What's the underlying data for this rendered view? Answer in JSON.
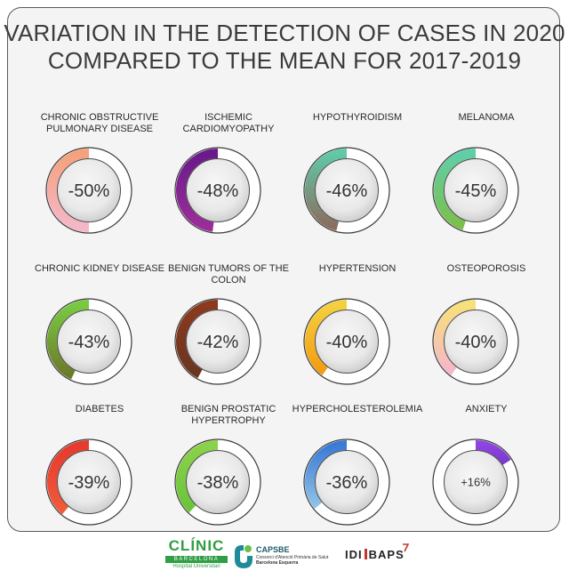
{
  "title": {
    "line1": "VARIATION IN THE DETECTION OF CASES IN 2020",
    "line2": "COMPARED TO THE MEAN FOR 2017-2019"
  },
  "items": [
    {
      "label": "CHRONIC OBSTRUCTIVE PULMONARY DISEASE",
      "value": "-50%",
      "fraction": 0.5,
      "direction": "ccw",
      "colors": [
        "#f6a17c",
        "#f5b7c8"
      ]
    },
    {
      "label": "ISCHEMIC CARDIOMYOPATHY",
      "value": "-48%",
      "fraction": 0.48,
      "direction": "ccw",
      "colors": [
        "#6a1a8a",
        "#9b2d9b"
      ]
    },
    {
      "label": "HYPOTHYROIDISM",
      "value": "-46%",
      "fraction": 0.46,
      "direction": "ccw",
      "colors": [
        "#5fc9a8",
        "#8a6e5e"
      ]
    },
    {
      "label": "MELANOMA",
      "value": "-45%",
      "fraction": 0.45,
      "direction": "ccw",
      "colors": [
        "#5fcfa8",
        "#7cbf4a"
      ]
    },
    {
      "label": "CHRONIC KIDNEY DISEASE",
      "value": "-43%",
      "fraction": 0.43,
      "direction": "ccw",
      "colors": [
        "#7ac943",
        "#6b7a2a"
      ]
    },
    {
      "label": "BENIGN TUMORS OF THE COLON",
      "value": "-42%",
      "fraction": 0.42,
      "direction": "ccw",
      "colors": [
        "#8b3a1e",
        "#6b3520"
      ]
    },
    {
      "label": "HYPERTENSION",
      "value": "-40%",
      "fraction": 0.4,
      "direction": "ccw",
      "colors": [
        "#f4d03f",
        "#f39c12"
      ]
    },
    {
      "label": "OSTEOPOROSIS",
      "value": "-40%",
      "fraction": 0.4,
      "direction": "ccw",
      "colors": [
        "#f7e07a",
        "#f6b7c8"
      ]
    },
    {
      "label": "DIABETES",
      "value": "-39%",
      "fraction": 0.39,
      "direction": "ccw",
      "colors": [
        "#e63a2e",
        "#f05a3a"
      ]
    },
    {
      "label": "BENIGN PROSTATIC HYPERTROPHY",
      "value": "-38%",
      "fraction": 0.38,
      "direction": "ccw",
      "colors": [
        "#8ad24a",
        "#6cc43a"
      ]
    },
    {
      "label": "HYPERCHOLESTEROLEMIA",
      "value": "-36%",
      "fraction": 0.36,
      "direction": "ccw",
      "colors": [
        "#3a7bd5",
        "#8fc1e8"
      ]
    },
    {
      "label": "ANXIETY",
      "value": "+16%",
      "fraction": 0.16,
      "direction": "cw",
      "colors": [
        "#8e44e0",
        "#7b3ad0"
      ]
    }
  ],
  "footer": {
    "clinic": {
      "name": "CLÍNIC",
      "sub1": "BARCELONA",
      "sub2": "Hospital Universitari",
      "color": "#2f9e44"
    },
    "capsbe": {
      "name": "CAPSBE",
      "sub1": "Consorci d'Atenció Primària de Salut",
      "sub2": "Barcelona Esquerra",
      "color": "#1f8a9a"
    },
    "idibaps": {
      "name_left": "IDI",
      "name_right": "BAPS",
      "color": "#c0392b"
    }
  }
}
